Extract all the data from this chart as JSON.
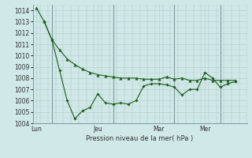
{
  "bg_color": "#d0e8e8",
  "grid_color": "#b8d0d0",
  "line_color": "#1a5c1a",
  "vline_color": "#7a9a9a",
  "xlabel": "Pression niveau de la mer( hPa )",
  "ylim": [
    1004,
    1014.5
  ],
  "yticks": [
    1004,
    1005,
    1006,
    1007,
    1008,
    1009,
    1010,
    1011,
    1012,
    1013,
    1014
  ],
  "xtick_labels": [
    "Lun",
    "Jeu",
    "Mar",
    "Mer"
  ],
  "xtick_positions": [
    0.5,
    8.5,
    16.5,
    22.5
  ],
  "vline_positions": [
    2.5,
    10.5,
    18.5,
    24.5
  ],
  "xlim": [
    0,
    28
  ],
  "series1_x": [
    0.5,
    1.5,
    2.5,
    3.5,
    4.5,
    5.5,
    6.5,
    7.5,
    8.5,
    9.5,
    10.5,
    11.5,
    12.5,
    13.5,
    14.5,
    15.5,
    16.5,
    17.5,
    18.5,
    19.5,
    20.5,
    21.5,
    22.5,
    23.5,
    24.5,
    25.5,
    26.5
  ],
  "series1_y": [
    1014.2,
    1013.0,
    1011.4,
    1010.5,
    1009.7,
    1009.2,
    1008.8,
    1008.5,
    1008.3,
    1008.2,
    1008.1,
    1008.0,
    1008.0,
    1008.0,
    1007.9,
    1007.9,
    1007.9,
    1008.1,
    1007.9,
    1008.0,
    1007.8,
    1007.8,
    1008.0,
    1007.8,
    1007.8,
    1007.8,
    1007.8
  ],
  "series2_x": [
    1.5,
    2.5,
    3.5,
    4.5,
    5.5,
    6.5,
    7.5,
    8.5,
    9.5,
    10.5,
    11.5,
    12.5,
    13.5,
    14.5,
    15.5,
    16.5,
    17.5,
    18.5,
    19.5,
    20.5,
    21.5,
    22.5,
    23.5,
    24.5,
    25.5,
    26.5
  ],
  "series2_y": [
    1013.0,
    1011.4,
    1008.7,
    1006.0,
    1004.4,
    1005.1,
    1005.4,
    1006.6,
    1005.8,
    1005.7,
    1005.8,
    1005.7,
    1006.0,
    1007.3,
    1007.5,
    1007.5,
    1007.4,
    1007.2,
    1006.5,
    1007.0,
    1007.0,
    1008.5,
    1008.0,
    1007.2,
    1007.5,
    1007.7
  ]
}
